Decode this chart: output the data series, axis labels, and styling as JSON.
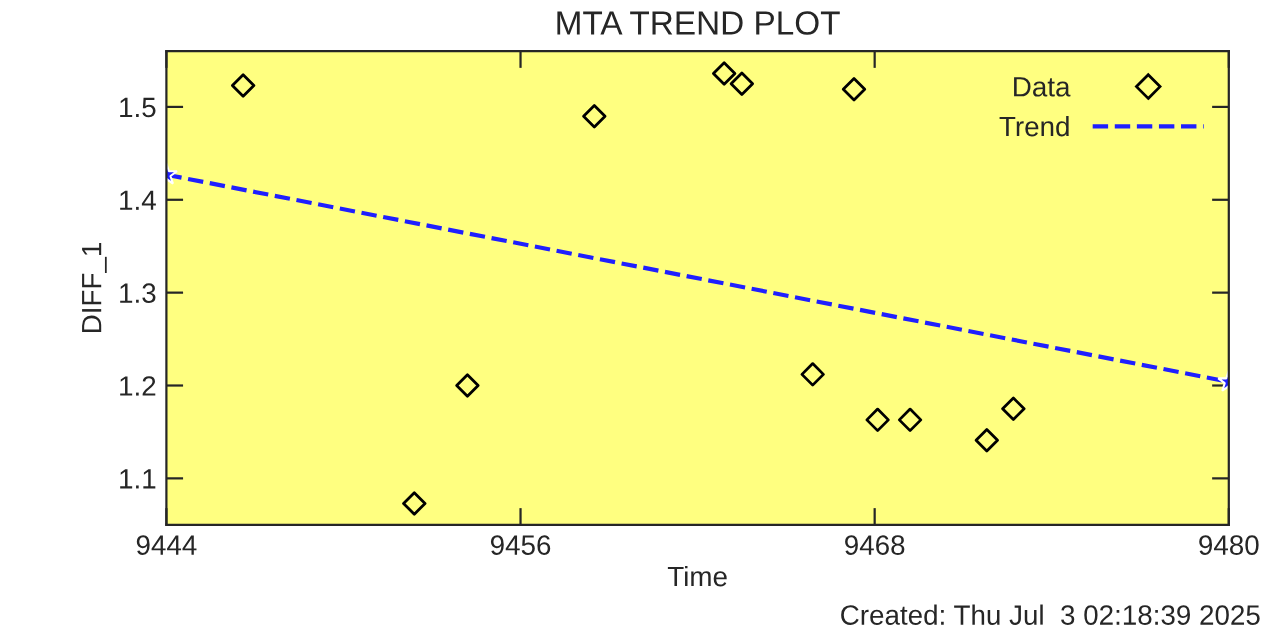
{
  "chart_data": {
    "type": "scatter",
    "title": "MTA TREND PLOT",
    "xlabel": "Time",
    "ylabel": "DIFF_1",
    "xlim": [
      9444,
      9480
    ],
    "xticks": [
      9444,
      9456,
      9468,
      9480
    ],
    "ylim": [
      1.05,
      1.56
    ],
    "yticks": [
      1.1,
      1.2,
      1.3,
      1.4,
      1.5
    ],
    "grid": false,
    "legend": "top right",
    "annotations": [
      "Created: Thu Jul  3 02:18:39 2025"
    ],
    "series": [
      {
        "name": "Data",
        "marker": "diamond",
        "color": "#000000",
        "x": [
          9446.6,
          9452.4,
          9454.2,
          9458.5,
          9462.9,
          9463.5,
          9465.9,
          9467.3,
          9468.1,
          9469.2,
          9471.8,
          9472.7
        ],
        "values": [
          1.523,
          1.073,
          1.2,
          1.49,
          1.536,
          1.525,
          1.212,
          1.519,
          1.163,
          1.163,
          1.141,
          1.175
        ]
      },
      {
        "name": "Trend",
        "type": "line",
        "marker": "star",
        "line_style": "dashed",
        "color": "#1f1fff",
        "x": [
          9444,
          9480
        ],
        "values": [
          1.427,
          1.204
        ]
      }
    ]
  }
}
